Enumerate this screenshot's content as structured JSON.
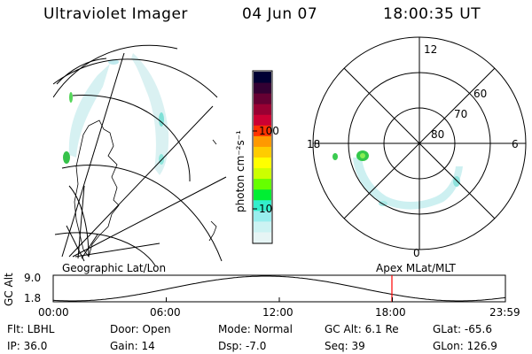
{
  "header": {
    "instrument": "Ultraviolet Imager",
    "date": "04 Jun 07",
    "time": "18:00:35 UT"
  },
  "left_map": {
    "caption": "Geographic Lat/Lon"
  },
  "right_map": {
    "caption": "Apex  MLat/MLT",
    "mlt_labels": [
      "12",
      "18",
      "6",
      "0"
    ],
    "lat_labels": [
      "60",
      "70",
      "80"
    ]
  },
  "colorbar": {
    "unit_label": "photon cm⁻²s⁻¹",
    "ticks": [
      "100",
      "10"
    ],
    "colors": [
      "#000033",
      "#330033",
      "#660033",
      "#990033",
      "#cc0033",
      "#ff3300",
      "#ff9900",
      "#ffcc00",
      "#ffff00",
      "#ccff00",
      "#66ff00",
      "#00ee33",
      "#33eecc",
      "#99eeee",
      "#ccf3f3",
      "#e6f5f5"
    ]
  },
  "altitude_panel": {
    "ylabel": "GC Alt",
    "y_top": "9.0",
    "y_bottom": "1.8",
    "x_ticks": [
      "00:00",
      "06:00",
      "12:00",
      "18:00",
      "23:59"
    ],
    "marker_color": "#ff0000"
  },
  "info": {
    "filter": "Flt: LBHL",
    "ip": "IP: 36.0",
    "door": "Door: Open",
    "gain": "Gain: 14",
    "mode": "Mode: Normal",
    "dsp": "Dsp:   -7.0",
    "gc_alt": "GC Alt: 6.1 Re",
    "seq": "Seq: 39",
    "glat": "GLat: -65.6",
    "glon": "GLon: 126.9"
  }
}
